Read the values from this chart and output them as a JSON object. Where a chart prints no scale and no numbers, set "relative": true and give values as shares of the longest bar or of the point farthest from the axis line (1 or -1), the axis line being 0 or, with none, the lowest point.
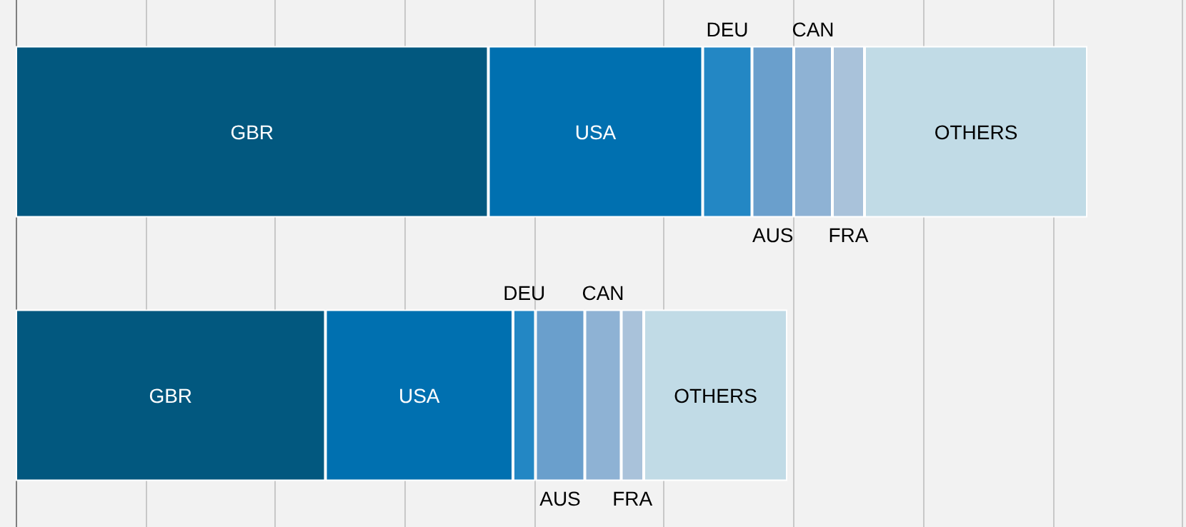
{
  "chart_data": {
    "type": "bar",
    "orientation": "horizontal",
    "stacked": true,
    "relative": true,
    "grid": "x",
    "legend": false,
    "categories": [
      null,
      null
    ],
    "series": [
      {
        "name": "GBR",
        "color": "#02587f",
        "values": [
          0.441,
          0.289
        ]
      },
      {
        "name": "USA",
        "color": "#0070b0",
        "values": [
          0.2,
          0.175
        ]
      },
      {
        "name": "DEU",
        "color": "#2387c4",
        "values": [
          0.046,
          0.021
        ]
      },
      {
        "name": "AUS",
        "color": "#6a9fcc",
        "values": [
          0.039,
          0.046
        ]
      },
      {
        "name": "CAN",
        "color": "#8eb2d4",
        "values": [
          0.036,
          0.034
        ]
      },
      {
        "name": "FRA",
        "color": "#a9c2da",
        "values": [
          0.03,
          0.021
        ]
      },
      {
        "name": "OTHERS",
        "color": "#c1dbe6",
        "values": [
          0.208,
          0.134
        ]
      }
    ]
  }
}
